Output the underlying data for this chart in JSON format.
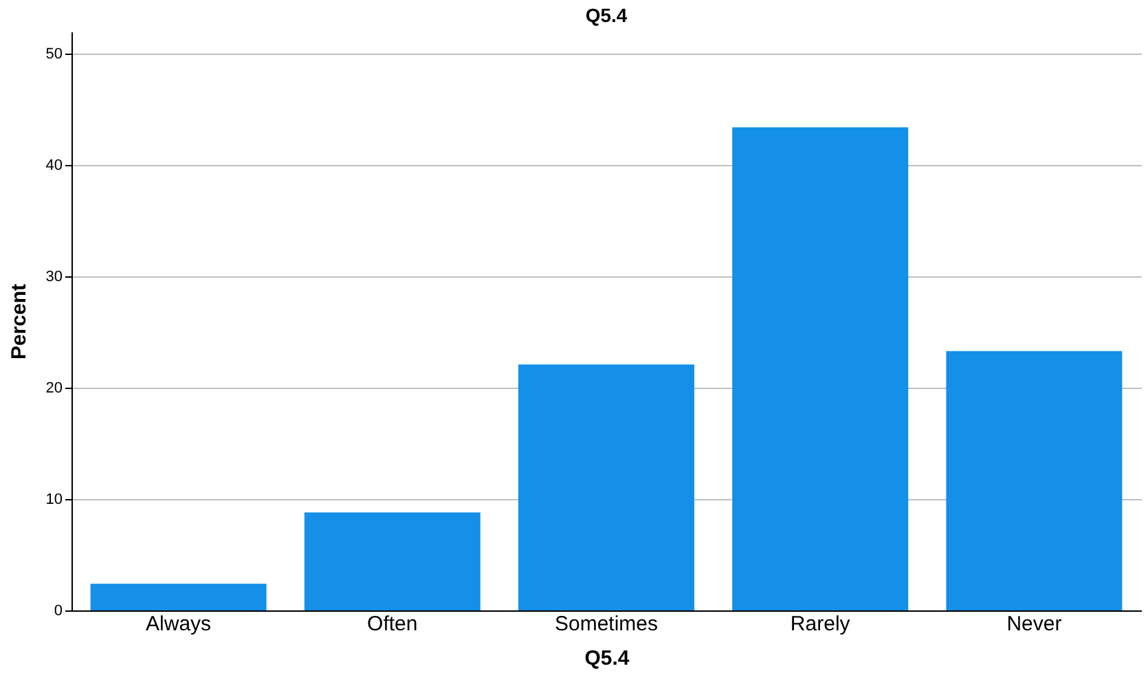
{
  "chart_data": {
    "type": "bar",
    "title": "Q5.4",
    "xlabel": "Q5.4",
    "ylabel": "Percent",
    "categories": [
      "Always",
      "Often",
      "Sometimes",
      "Rarely",
      "Never"
    ],
    "values": [
      2.4,
      8.8,
      22.1,
      43.4,
      23.3
    ],
    "color": "#1490e8",
    "ylim": [
      0,
      52
    ],
    "yticks": [
      0,
      10,
      20,
      30,
      40,
      50
    ],
    "grid": "y"
  }
}
